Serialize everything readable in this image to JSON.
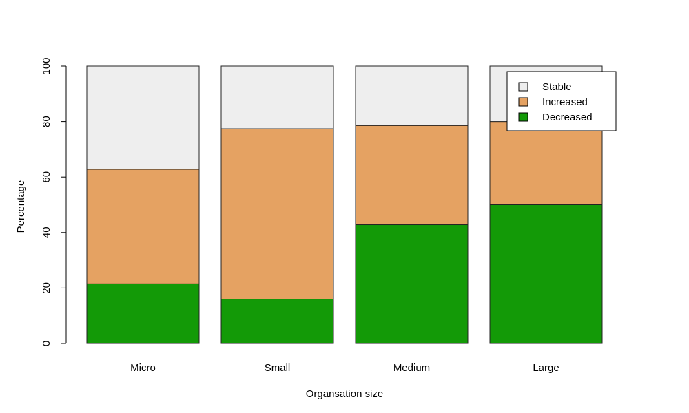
{
  "chart_data": {
    "type": "bar",
    "stacked": true,
    "xlabel": "Organsation size",
    "ylabel": "Percentage",
    "ylim": [
      0,
      100
    ],
    "yticks": [
      0,
      20,
      40,
      60,
      80,
      100
    ],
    "categories": [
      "Micro",
      "Small",
      "Medium",
      "Large"
    ],
    "series": [
      {
        "name": "Decreased",
        "color": "#139a07",
        "values": [
          21.5,
          16.0,
          42.8,
          50.0
        ]
      },
      {
        "name": "Increased",
        "color": "#e5a262",
        "values": [
          41.3,
          61.4,
          35.8,
          30.0
        ]
      },
      {
        "name": "Stable",
        "color": "#eeeeee",
        "values": [
          37.2,
          22.6,
          21.4,
          20.0
        ]
      }
    ],
    "legend": {
      "position": "top-right",
      "order": [
        "Stable",
        "Increased",
        "Decreased"
      ]
    },
    "grid": false
  }
}
